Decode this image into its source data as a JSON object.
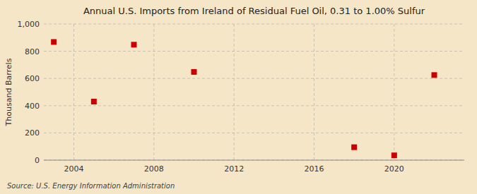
{
  "chart_data": {
    "type": "scatter",
    "title": "Annual U.S. Imports from Ireland of Residual Fuel Oil, 0.31 to 1.00% Sulfur",
    "y_label": "Thousand Barrels",
    "source": "Source: U.S. Energy Information Administration",
    "x": [
      2003,
      2005,
      2007,
      2010,
      2018,
      2020,
      2022
    ],
    "values": [
      868,
      430,
      848,
      648,
      95,
      35,
      625
    ],
    "color": "#cc0000",
    "marker": "square",
    "xlim": [
      2002.5,
      2023.5
    ],
    "ylim": [
      0,
      1000
    ],
    "xticks": [
      2004,
      2008,
      2012,
      2016,
      2020
    ],
    "yticks": [
      0,
      200,
      400,
      600,
      800,
      {
        "value": 1000,
        "label": "1,000"
      }
    ],
    "grid": true
  }
}
